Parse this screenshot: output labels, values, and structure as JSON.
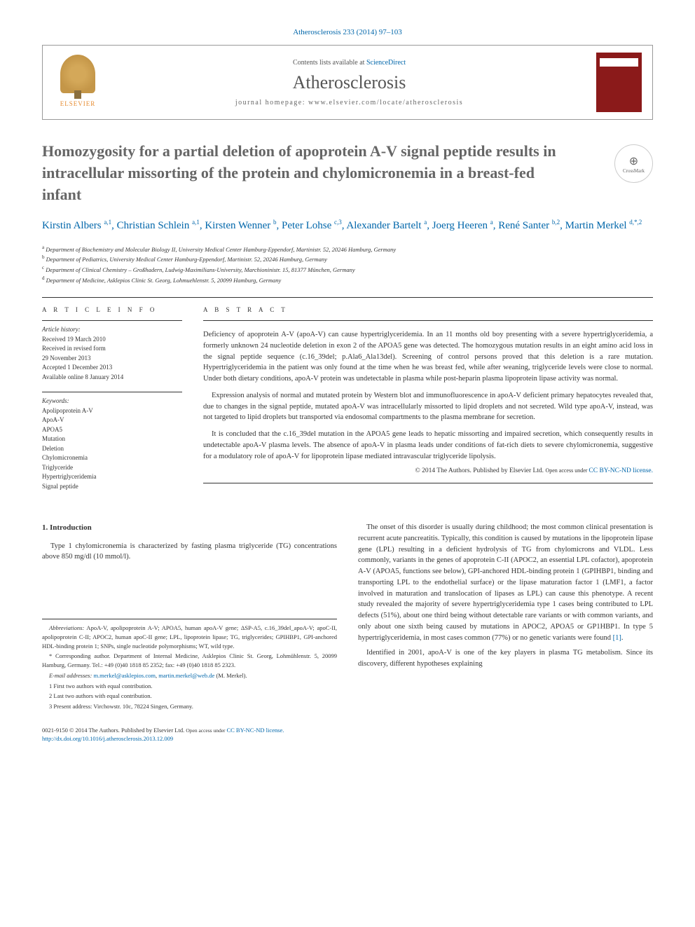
{
  "citation": "Atherosclerosis 233 (2014) 97–103",
  "header": {
    "contents_prefix": "Contents lists available at ",
    "contents_link": "ScienceDirect",
    "journal": "Atherosclerosis",
    "homepage_prefix": "journal homepage: ",
    "homepage": "www.elsevier.com/locate/atherosclerosis",
    "elsevier_label": "ELSEVIER"
  },
  "crossmark": "CrossMark",
  "title": "Homozygosity for a partial deletion of apoprotein A-V signal peptide results in intracellular missorting of the protein and chylomicronemia in a breast-fed infant",
  "authors_html": "Kirstin Albers <sup>a,1</sup>, Christian Schlein <sup>a,1</sup>, Kirsten Wenner <sup>b</sup>, Peter Lohse <sup>c,3</sup>, Alexander Bartelt <sup>a</sup>, Joerg Heeren <sup>a</sup>, René Santer <sup>b,2</sup>, Martin Merkel <sup>d,*,2</sup>",
  "affiliations": [
    "a Department of Biochemistry and Molecular Biology II, University Medical Center Hamburg-Eppendorf, Martinistr. 52, 20246 Hamburg, Germany",
    "b Department of Pediatrics, University Medical Center Hamburg-Eppendorf, Martinistr. 52, 20246 Hamburg, Germany",
    "c Department of Clinical Chemistry – Großhadern, Ludwig-Maximilians-University, Marchioninistr. 15, 81377 München, Germany",
    "d Department of Medicine, Asklepios Clinic St. Georg, Lohmuehlenstr. 5, 20099 Hamburg, Germany"
  ],
  "info": {
    "heading_info": "A R T I C L E   I N F O",
    "heading_abstract": "A B S T R A C T",
    "history_label": "Article history:",
    "history": [
      "Received 19 March 2010",
      "Received in revised form",
      "29 November 2013",
      "Accepted 1 December 2013",
      "Available online 8 January 2014"
    ],
    "keywords_label": "Keywords:",
    "keywords": [
      "Apolipoprotein A-V",
      "ApoA-V",
      "APOA5",
      "Mutation",
      "Deletion",
      "Chylomicronemia",
      "Triglyceride",
      "Hypertriglyceridemia",
      "Signal peptide"
    ]
  },
  "abstract": {
    "p1": "Deficiency of apoprotein A-V (apoA-V) can cause hypertriglyceridemia. In an 11 months old boy presenting with a severe hypertriglyceridemia, a formerly unknown 24 nucleotide deletion in exon 2 of the APOA5 gene was detected. The homozygous mutation results in an eight amino acid loss in the signal peptide sequence (c.16_39del; p.Ala6_Ala13del). Screening of control persons proved that this deletion is a rare mutation. Hypertriglyceridemia in the patient was only found at the time when he was breast fed, while after weaning, triglyceride levels were close to normal. Under both dietary conditions, apoA-V protein was undetectable in plasma while post-heparin plasma lipoprotein lipase activity was normal.",
    "p2": "Expression analysis of normal and mutated protein by Western blot and immunofluorescence in apoA-V deficient primary hepatocytes revealed that, due to changes in the signal peptide, mutated apoA-V was intracellularly missorted to lipid droplets and not secreted. Wild type apoA-V, instead, was not targeted to lipid droplets but transported via endosomal compartments to the plasma membrane for secretion.",
    "p3": "It is concluded that the c.16_39del mutation in the APOA5 gene leads to hepatic missorting and impaired secretion, which consequently results in undetectable apoA-V plasma levels. The absence of apoA-V in plasma leads under conditions of fat-rich diets to severe chylomicronemia, suggestive for a modulatory role of apoA-V for lipoprotein lipase mediated intravascular triglyceride lipolysis.",
    "copyright_prefix": "© 2014 The Authors. Published by Elsevier Ltd. ",
    "open_access": "Open access under ",
    "license": "CC BY-NC-ND license."
  },
  "body": {
    "section1_heading": "1. Introduction",
    "col1_p1": "Type 1 chylomicronemia is characterized by fasting plasma triglyceride (TG) concentrations above 850 mg/dl (10 mmol/l).",
    "col2_p1": "The onset of this disorder is usually during childhood; the most common clinical presentation is recurrent acute pancreatitis. Typically, this condition is caused by mutations in the lipoprotein lipase gene (LPL) resulting in a deficient hydrolysis of TG from chylomicrons and VLDL. Less commonly, variants in the genes of apoprotein C-II (APOC2, an essential LPL cofactor), apoprotein A-V (APOA5, functions see below), GPI-anchored HDL-binding protein 1 (GPIHBP1, binding and transporting LPL to the endothelial surface) or the lipase maturation factor 1 (LMF1, a factor involved in maturation and translocation of lipases as LPL) can cause this phenotype. A recent study revealed the majority of severe hypertriglyceridemia type 1 cases being contributed to LPL defects (51%), about one third being without detectable rare variants or with common variants, and only about one sixth being caused by mutations in APOC2, APOA5 or GP1HBP1. In type 5 hypertriglyceridemia, in most cases common (77%) or no genetic variants were found ",
    "col2_ref1": "[1]",
    "col2_p2": "Identified in 2001, apoA-V is one of the key players in plasma TG metabolism. Since its discovery, different hypotheses explaining"
  },
  "footnotes": {
    "abbrev_label": "Abbreviations:",
    "abbrev": " ApoA-V, apolipoprotein A-V; APOA5, human apoA-V gene; ΔSP-A5, c.16_39del_apoA-V; apoC-II, apolipoprotein C-II; APOC2, human apoC-II gene; LPL, lipoprotein lipase; TG, triglycerides; GPIHBP1, GPI-anchored HDL-binding protein 1; SNPs, single nucleotide polymorphisms; WT, wild type.",
    "corr": "* Corresponding author. Department of Internal Medicine, Asklepios Clinic St. Georg, Lohmühlenstr. 5, 20099 Hamburg, Germany. Tel.: +49 (0)40 1818 85 2352; fax: +49 (0)40 1818 85 2323.",
    "email_label": "E-mail addresses:",
    "email1": "m.merkel@asklepios.com",
    "email2": "martin.merkel@web.de",
    "email_who": " (M. Merkel).",
    "fn1": "1 First two authors with equal contribution.",
    "fn2": "2 Last two authors with equal contribution.",
    "fn3": "3 Present address: Virchowstr. 10c, 78224 Singen, Germany."
  },
  "footer": {
    "line1": "0021-9150 © 2014 The Authors. Published by Elsevier Ltd. ",
    "open_access": "Open access under ",
    "license": "CC BY-NC-ND license.",
    "doi": "http://dx.doi.org/10.1016/j.atherosclerosis.2013.12.009"
  },
  "colors": {
    "link": "#0066aa",
    "elsevier_orange": "#e68a2e",
    "cover_red": "#8b1a1a",
    "text_gray": "#666666"
  }
}
